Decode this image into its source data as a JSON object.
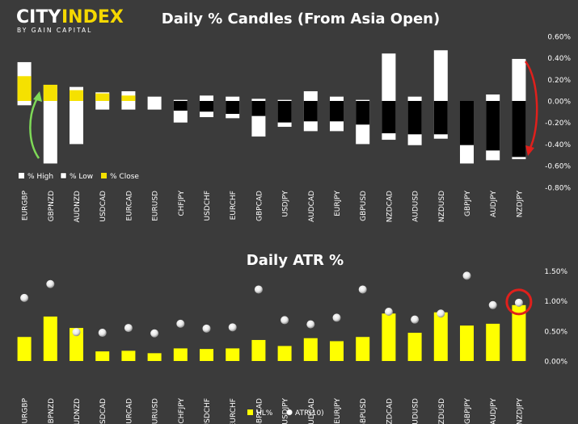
{
  "brand": {
    "name_part1": "CITY",
    "name_part2": "INDEX",
    "tagline": "BY GAIN CAPITAL",
    "accent_color": "#f5d800"
  },
  "colors": {
    "background": "#3b3b3b",
    "high_fill": "#ffffff",
    "low_fill": "#000000",
    "close_fill": "#f5e100",
    "hl_bar": "#ffff00",
    "arrow_up": "#7ed957",
    "arrow_down": "#e0201c",
    "circle_highlight": "#e0201c"
  },
  "chart_data": [
    {
      "type": "bar",
      "title": "Daily % Candles (From Asia Open)",
      "categories": [
        "EURGBP",
        "GBPNZD",
        "AUDNZD",
        "USDCAD",
        "EURCAD",
        "EURUSD",
        "CHFJPY",
        "USDCHF",
        "EURCHF",
        "GBPCAD",
        "USDJPY",
        "AUDCAD",
        "EURJPY",
        "GBPUSD",
        "NZDCAD",
        "AUDUSD",
        "NZDUSD",
        "GBPJPY",
        "AUDJPY",
        "NZDJPY"
      ],
      "series": [
        {
          "name": "% High",
          "values": [
            0.36,
            0.15,
            0.13,
            0.08,
            0.09,
            0.04,
            0.01,
            0.05,
            0.04,
            0.02,
            0.01,
            0.09,
            0.04,
            0.01,
            0.44,
            0.04,
            0.47,
            0.0,
            0.06,
            0.39
          ]
        },
        {
          "name": "% Low",
          "values": [
            -0.04,
            -0.58,
            -0.4,
            -0.08,
            -0.08,
            -0.08,
            -0.2,
            -0.15,
            -0.16,
            -0.33,
            -0.24,
            -0.28,
            -0.28,
            -0.4,
            -0.36,
            -0.41,
            -0.35,
            -0.58,
            -0.55,
            -0.54
          ]
        },
        {
          "name": "% Close",
          "values": [
            0.23,
            0.15,
            0.1,
            0.07,
            0.05,
            0.0,
            -0.09,
            -0.1,
            -0.12,
            -0.14,
            -0.2,
            -0.19,
            -0.19,
            -0.22,
            -0.3,
            -0.31,
            -0.31,
            -0.41,
            -0.46,
            -0.52
          ]
        }
      ],
      "ylim": [
        -0.8,
        0.6
      ],
      "yticks": [
        "0.60%",
        "0.40%",
        "0.20%",
        "0.00%",
        "-0.20%",
        "-0.40%",
        "-0.60%",
        "-0.80%"
      ],
      "legend": [
        "% High",
        "% Low",
        "% Close"
      ],
      "legend_position": "bottom-left"
    },
    {
      "type": "bar",
      "title": "Daily ATR %",
      "categories": [
        "EURGBP",
        "GBPNZD",
        "AUDNZD",
        "USDCAD",
        "EURCAD",
        "EURUSD",
        "CHFJPY",
        "USDCHF",
        "EURCHF",
        "GBPCAD",
        "USDJPY",
        "AUDCAD",
        "EURJPY",
        "GBPUSD",
        "NZDCAD",
        "AUDUSD",
        "NZDUSD",
        "GBPJPY",
        "AUDJPY",
        "NZDJPY"
      ],
      "series": [
        {
          "name": "HL%",
          "type": "bar",
          "values": [
            0.4,
            0.74,
            0.55,
            0.16,
            0.17,
            0.13,
            0.21,
            0.2,
            0.21,
            0.35,
            0.25,
            0.38,
            0.33,
            0.4,
            0.79,
            0.47,
            0.81,
            0.59,
            0.62,
            0.93
          ]
        },
        {
          "name": "ATR(10)",
          "type": "scatter",
          "values": [
            1.05,
            1.28,
            0.48,
            0.47,
            0.55,
            0.46,
            0.62,
            0.54,
            0.56,
            1.19,
            0.68,
            0.61,
            0.72,
            1.19,
            0.82,
            0.69,
            0.79,
            1.42,
            0.93,
            0.97
          ]
        }
      ],
      "ylim": [
        0,
        1.5
      ],
      "yticks": [
        "1.50%",
        "1.00%",
        "0.50%",
        "0.00%"
      ],
      "legend": [
        "HL%",
        "ATR(10)"
      ],
      "legend_position": "bottom-center"
    }
  ]
}
